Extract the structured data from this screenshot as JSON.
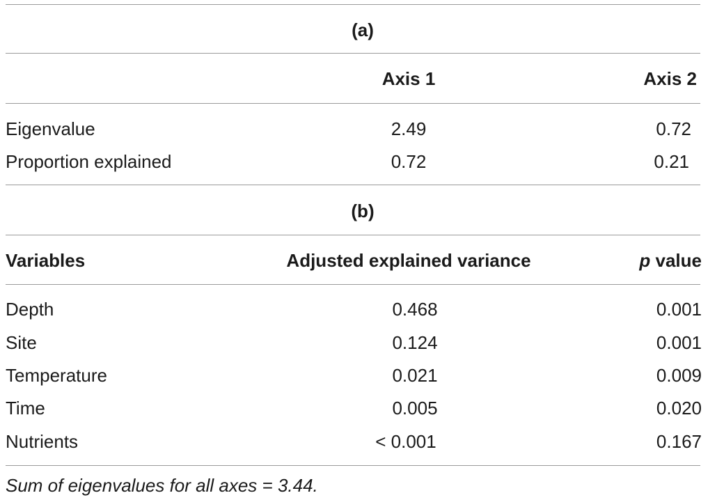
{
  "table_a": {
    "label": "(a)",
    "headers": [
      "",
      "Axis 1",
      "Axis 2"
    ],
    "rows": [
      [
        "Eigenvalue",
        "2.49",
        "0.72"
      ],
      [
        "Proportion explained",
        "0.72",
        "0.21"
      ]
    ]
  },
  "table_b": {
    "label": "(b)",
    "headers": [
      "Variables",
      "Adjusted explained variance",
      "p",
      "value"
    ],
    "rows": [
      [
        "Depth",
        "0.468",
        "0.001"
      ],
      [
        "Site",
        "0.124",
        "0.001"
      ],
      [
        "Temperature",
        "0.021",
        "0.009"
      ],
      [
        "Time",
        "0.005",
        "0.020"
      ],
      [
        "Nutrients",
        "< 0.001",
        "0.167"
      ]
    ]
  },
  "footnote": "Sum of eigenvalues for all axes = 3.44."
}
